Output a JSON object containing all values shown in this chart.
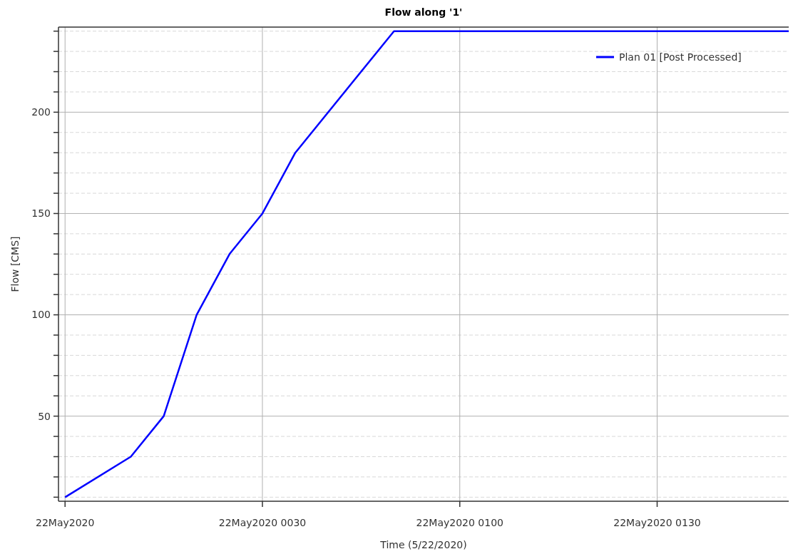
{
  "chart_data": {
    "type": "line",
    "title": "Flow along '1'",
    "xlabel": "Time (5/22/2020)",
    "ylabel": "Flow [CMS]",
    "x": [
      "2020-05-22T00:00",
      "2020-05-22T00:10",
      "2020-05-22T00:15",
      "2020-05-22T00:20",
      "2020-05-22T00:25",
      "2020-05-22T00:30",
      "2020-05-22T00:35",
      "2020-05-22T00:50",
      "2020-05-22T01:50"
    ],
    "series": [
      {
        "name": "Plan 01 [Post Processed]",
        "color": "#0000ff",
        "values": [
          10,
          30,
          50,
          100,
          130,
          150,
          180,
          240,
          240
        ]
      }
    ],
    "xlim": [
      "2020-05-21T23:59",
      "2020-05-22T01:50"
    ],
    "xticks": [
      {
        "value": "2020-05-22T00:00",
        "label": "22May2020"
      },
      {
        "value": "2020-05-22T00:30",
        "label": "22May2020 0030"
      },
      {
        "value": "2020-05-22T01:00",
        "label": "22May2020 0100"
      },
      {
        "value": "2020-05-22T01:30",
        "label": "22May2020 0130"
      }
    ],
    "ylim": [
      8,
      242
    ],
    "yticks": [
      {
        "value": 10,
        "label": null
      },
      {
        "value": 20,
        "label": null
      },
      {
        "value": 30,
        "label": null
      },
      {
        "value": 40,
        "label": null
      },
      50,
      {
        "value": 60,
        "label": null
      },
      {
        "value": 70,
        "label": null
      },
      {
        "value": 80,
        "label": null
      },
      {
        "value": 90,
        "label": null
      },
      100,
      {
        "value": 110,
        "label": null
      },
      {
        "value": 120,
        "label": null
      },
      {
        "value": 130,
        "label": null
      },
      {
        "value": 140,
        "label": null
      },
      150,
      {
        "value": 160,
        "label": null
      },
      {
        "value": 170,
        "label": null
      },
      {
        "value": 180,
        "label": null
      },
      {
        "value": 190,
        "label": null
      },
      200,
      {
        "value": 210,
        "label": null
      },
      {
        "value": 220,
        "label": null
      },
      {
        "value": 230,
        "label": null
      },
      {
        "value": 240,
        "label": null
      }
    ],
    "grid": true,
    "legend": "top right",
    "marker": "none",
    "line_style": "solid"
  }
}
